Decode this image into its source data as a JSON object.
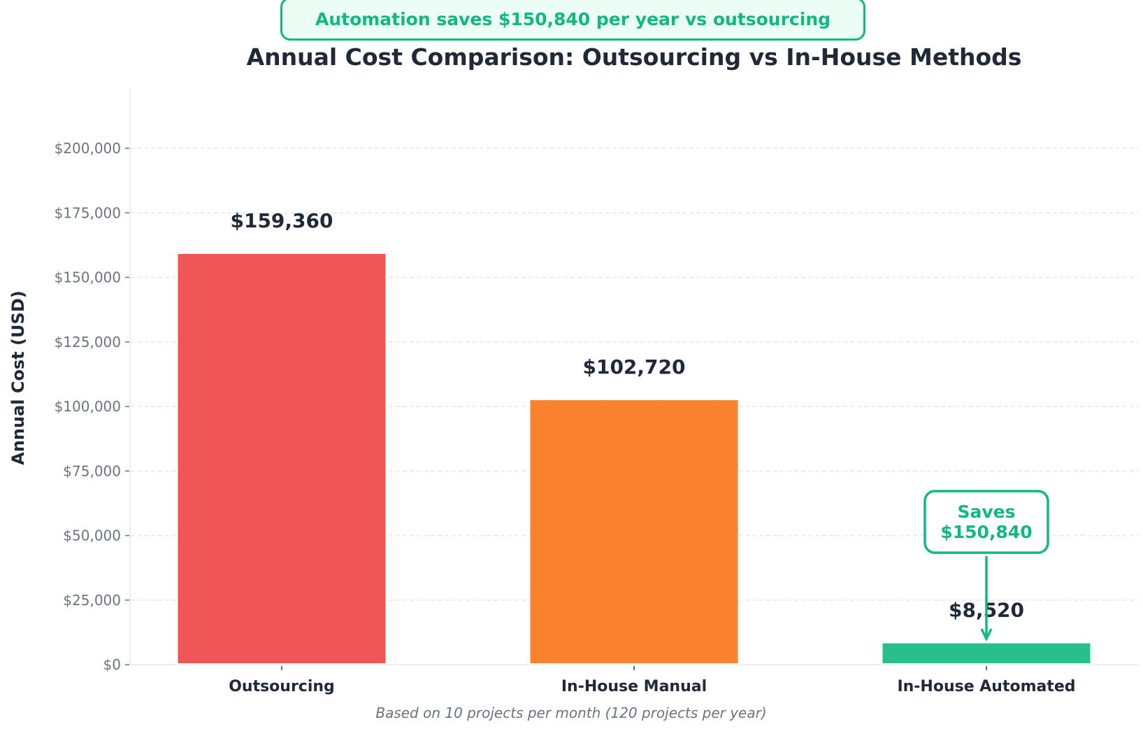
{
  "banner": "Automation saves $150,840 per year vs outsourcing",
  "chart_data": {
    "type": "bar",
    "title": "Annual Cost Comparison: Outsourcing vs In-House Methods",
    "xlabel": "",
    "ylabel": "Annual Cost (USD)",
    "footnote": "Based on 10 projects per month (120 projects per year)",
    "categories": [
      "Outsourcing",
      "In-House Manual",
      "In-House Automated"
    ],
    "values": [
      159360,
      102720,
      8520
    ],
    "value_labels": [
      "$159,360",
      "$102,720",
      "$8,520"
    ],
    "colors": [
      "#ef4444",
      "#f97316",
      "#10b981"
    ],
    "ylim": [
      0,
      223000
    ],
    "yticks": [
      0,
      25000,
      50000,
      75000,
      100000,
      125000,
      150000,
      175000,
      200000
    ],
    "ytick_labels": [
      "$0",
      "$25,000",
      "$50,000",
      "$75,000",
      "$100,000",
      "$125,000",
      "$150,000",
      "$175,000",
      "$200,000"
    ],
    "grid": true,
    "annotation": {
      "line1": "Saves",
      "line2": "$150,840",
      "target": "In-House Automated",
      "color": "#10b981"
    }
  }
}
